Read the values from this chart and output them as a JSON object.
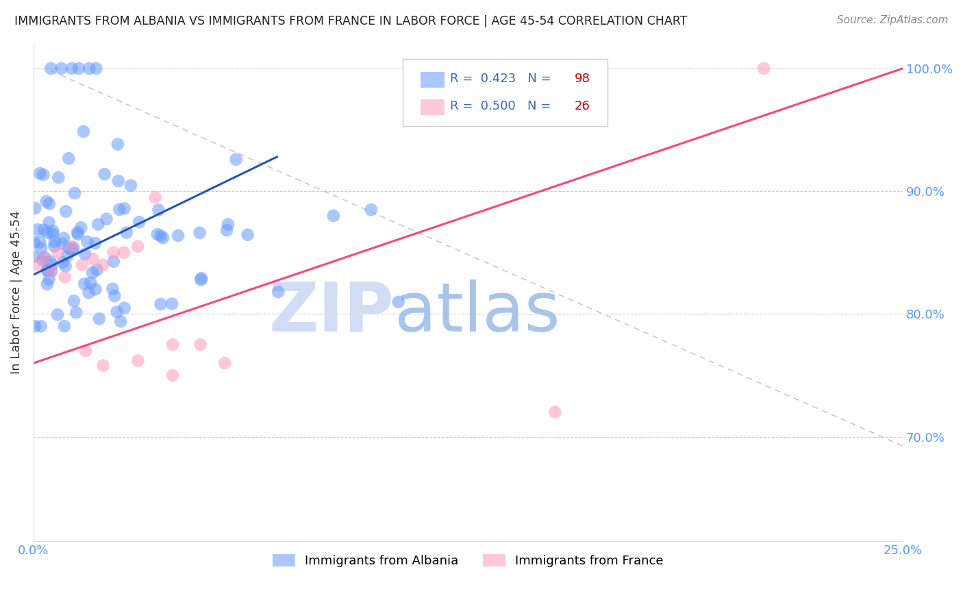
{
  "title": "IMMIGRANTS FROM ALBANIA VS IMMIGRANTS FROM FRANCE IN LABOR FORCE | AGE 45-54 CORRELATION CHART",
  "source": "Source: ZipAtlas.com",
  "ylabel": "In Labor Force | Age 45-54",
  "xlim": [
    0.0,
    0.25
  ],
  "ylim": [
    0.615,
    1.02
  ],
  "albania_color": "#6699ff",
  "france_color": "#ff99bb",
  "albania_R": 0.423,
  "albania_N": 98,
  "france_R": 0.5,
  "france_N": 26,
  "watermark_zip": "ZIP",
  "watermark_atlas": "atlas",
  "watermark_color_zip": "#d0ddf5",
  "watermark_color_atlas": "#a8c4e8"
}
